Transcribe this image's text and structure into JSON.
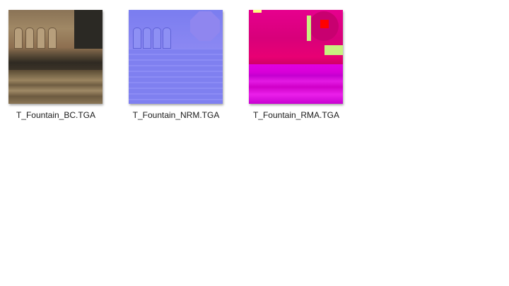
{
  "files": [
    {
      "name": "T_Fountain_BC.TGA",
      "type": "base-color-texture-thumbnail"
    },
    {
      "name": "T_Fountain_NRM.TGA",
      "type": "normal-map-texture-thumbnail"
    },
    {
      "name": "T_Fountain_RMA.TGA",
      "type": "rma-texture-thumbnail"
    }
  ]
}
